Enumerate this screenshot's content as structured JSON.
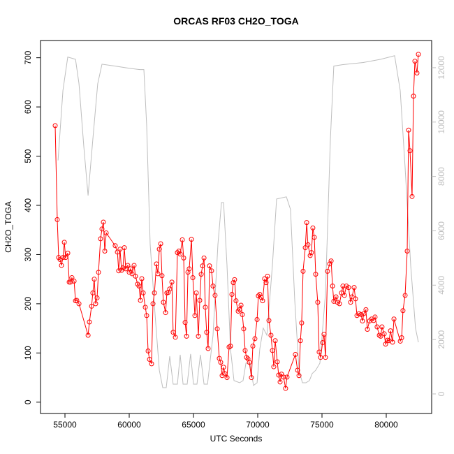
{
  "chart_data": {
    "type": "line",
    "title": "ORCAS RF03 CH2O_TOGA",
    "xlabel": "UTC Seconds",
    "ylabel": "CH2O_TOGA",
    "xlim": [
      53098,
      83533
    ],
    "ylim": [
      -23,
      735
    ],
    "y2lim": [
      -720,
      13000
    ],
    "xticks": [
      55000,
      60000,
      65000,
      70000,
      75000,
      80000
    ],
    "yticks": [
      0,
      100,
      200,
      300,
      400,
      500,
      600,
      700
    ],
    "y2ticks": [
      0,
      2000,
      4000,
      6000,
      8000,
      10000,
      12000
    ],
    "series": [
      {
        "color": "#ff0000",
        "marker": "circle",
        "x": [
          54240,
          54400,
          54510,
          54620,
          54730,
          54840,
          54950,
          55050,
          55220,
          55330,
          55430,
          55540,
          55710,
          55820,
          55920,
          56090,
          56800,
          56900,
          57070,
          57170,
          57280,
          57390,
          57500,
          57610,
          57770,
          57880,
          57990,
          58100,
          58210,
          58910,
          59080,
          59180,
          59290,
          59400,
          59510,
          59620,
          59730,
          59890,
          60000,
          60110,
          60220,
          60380,
          60490,
          60650,
          60760,
          60870,
          60980,
          61090,
          61250,
          61360,
          61470,
          61580,
          61740,
          61850,
          61960,
          62120,
          62230,
          62340,
          62450,
          62550,
          62660,
          62830,
          62930,
          63040,
          63150,
          63320,
          63420,
          63590,
          63750,
          63860,
          63970,
          64130,
          64240,
          64350,
          64460,
          64570,
          64670,
          64840,
          64950,
          65110,
          65220,
          65380,
          65490,
          65600,
          65710,
          65820,
          65920,
          66030,
          66140,
          66250,
          66410,
          66520,
          66680,
          66850,
          67010,
          67120,
          67230,
          67340,
          67450,
          67610,
          67770,
          67880,
          67990,
          68100,
          68200,
          68310,
          68480,
          68590,
          68700,
          68800,
          68910,
          69020,
          69130,
          69240,
          69350,
          69510,
          69620,
          69780,
          69950,
          70050,
          70160,
          70270,
          70380,
          70540,
          70650,
          70760,
          70870,
          71030,
          71140,
          71250,
          71360,
          71520,
          71630,
          71740,
          71850,
          72010,
          72170,
          72280,
          72930,
          73100,
          73210,
          73320,
          73420,
          73530,
          73700,
          73810,
          73910,
          74080,
          74180,
          74290,
          74400,
          74510,
          74670,
          74780,
          74890,
          75050,
          75160,
          75270,
          75430,
          75600,
          75710,
          75820,
          75920,
          76090,
          76200,
          76360,
          76520,
          76630,
          76740,
          76900,
          77070,
          77230,
          77340,
          77500,
          77610,
          77720,
          77880,
          78040,
          78150,
          78260,
          78420,
          78530,
          78700,
          78860,
          79020,
          79130,
          79290,
          79460,
          79570,
          79670,
          79840,
          79950,
          80110,
          80220,
          80330,
          80490,
          80600,
          81090,
          81200,
          81300,
          81470,
          81630,
          81740,
          81850,
          82010,
          82120,
          82230,
          82390,
          82500
        ],
        "values": [
          562,
          371,
          294,
          290,
          278,
          294,
          325,
          294,
          303,
          244,
          244,
          253,
          246,
          206,
          207,
          200,
          136,
          163,
          195,
          222,
          250,
          200,
          212,
          264,
          332,
          352,
          366,
          307,
          344,
          318,
          305,
          267,
          311,
          268,
          273,
          314,
          271,
          278,
          264,
          271,
          261,
          278,
          256,
          240,
          236,
          207,
          251,
          222,
          193,
          176,
          104,
          87,
          78,
          200,
          222,
          281,
          261,
          311,
          322,
          257,
          203,
          182,
          222,
          223,
          230,
          244,
          142,
          132,
          304,
          307,
          301,
          330,
          293,
          162,
          134,
          264,
          271,
          331,
          253,
          176,
          222,
          134,
          207,
          260,
          277,
          293,
          193,
          142,
          109,
          277,
          267,
          236,
          217,
          149,
          89,
          81,
          54,
          71,
          58,
          50,
          112,
          114,
          219,
          243,
          249,
          206,
          185,
          188,
          197,
          178,
          149,
          105,
          91,
          88,
          81,
          50,
          114,
          129,
          168,
          216,
          219,
          213,
          206,
          251,
          243,
          256,
          166,
          136,
          105,
          72,
          125,
          82,
          55,
          41,
          57,
          51,
          28,
          51,
          97,
          65,
          54,
          125,
          161,
          266,
          314,
          365,
          320,
          298,
          304,
          354,
          335,
          260,
          203,
          102,
          91,
          121,
          138,
          91,
          266,
          281,
          287,
          236,
          205,
          214,
          203,
          200,
          222,
          236,
          217,
          236,
          233,
          203,
          214,
          233,
          210,
          176,
          180,
          178,
          165,
          180,
          188,
          148,
          165,
          169,
          166,
          173,
          153,
          136,
          134,
          153,
          139,
          118,
          126,
          125,
          145,
          122,
          169,
          124,
          131,
          186,
          217,
          307,
          553,
          511,
          418,
          622,
          693,
          669,
          707
        ]
      },
      {
        "color": "#bebebe",
        "axis": "y2",
        "x": [
          54460,
          54840,
          55220,
          55820,
          56090,
          56470,
          56800,
          57170,
          57550,
          57880,
          58910,
          60000,
          60820,
          61140,
          61360,
          61630,
          62010,
          62340,
          62610,
          62880,
          63150,
          63420,
          63750,
          63970,
          64190,
          64510,
          64780,
          65000,
          65270,
          65540,
          65820,
          66090,
          66520,
          66900,
          67180,
          67340,
          67610,
          67880,
          68150,
          68590,
          68860,
          69080,
          69400,
          69670,
          69950,
          70160,
          70430,
          70710,
          71140,
          71470,
          72230,
          72550,
          72880,
          73210,
          73480,
          73750,
          74020,
          74240,
          74510,
          74840,
          75270,
          75650,
          75920,
          76580,
          78210,
          79570,
          80650,
          81090,
          81470,
          81900,
          82280,
          82500
        ],
        "values": [
          8590,
          11160,
          12390,
          12310,
          11410,
          9100,
          7300,
          9360,
          11410,
          12130,
          12060,
          11980,
          11930,
          11930,
          9870,
          5500,
          2930,
          870,
          230,
          230,
          1390,
          360,
          360,
          1440,
          360,
          360,
          1470,
          360,
          360,
          1440,
          360,
          360,
          2160,
          5500,
          7040,
          7040,
          4730,
          1650,
          490,
          410,
          490,
          1130,
          1130,
          310,
          410,
          1650,
          2420,
          2160,
          4730,
          7170,
          7250,
          6790,
          3440,
          870,
          410,
          410,
          490,
          750,
          870,
          1130,
          3700,
          9360,
          12060,
          12110,
          12190,
          12310,
          12440,
          11160,
          8330,
          4730,
          2420,
          1900
        ]
      }
    ]
  }
}
